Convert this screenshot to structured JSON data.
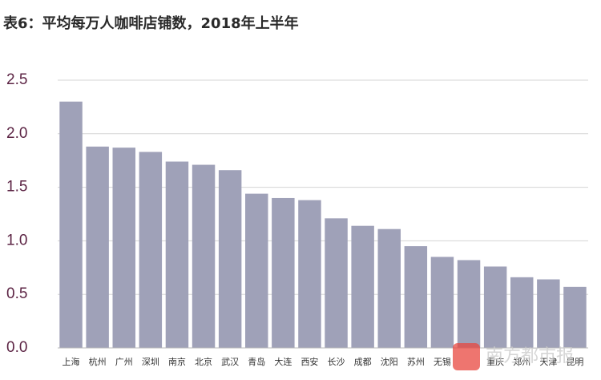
{
  "chart_data": {
    "type": "bar",
    "title": "表6：平均每万人咖啡店铺数，2018年上半年",
    "categories": [
      "上海",
      "杭州",
      "广州",
      "深圳",
      "南京",
      "北京",
      "武汉",
      "青岛",
      "大连",
      "西安",
      "长沙",
      "成都",
      "沈阳",
      "苏州",
      "无锡",
      null,
      "重庆",
      "郑州",
      "天津",
      "昆明"
    ],
    "values": [
      2.3,
      1.88,
      1.87,
      1.83,
      1.74,
      1.71,
      1.66,
      1.44,
      1.4,
      1.38,
      1.21,
      1.14,
      1.11,
      0.95,
      0.85,
      0.82,
      0.76,
      0.66,
      0.64,
      0.57
    ],
    "color": "#9fa1b8",
    "ylim": [
      0,
      2.5
    ],
    "yticks": [
      {
        "value": 0,
        "label": "0.0"
      },
      0.5,
      {
        "value": 1,
        "label": "1.0"
      },
      1.5,
      {
        "value": 2,
        "label": "2.0"
      },
      2.5
    ],
    "grid": true,
    "watermark": "南方都市报"
  }
}
